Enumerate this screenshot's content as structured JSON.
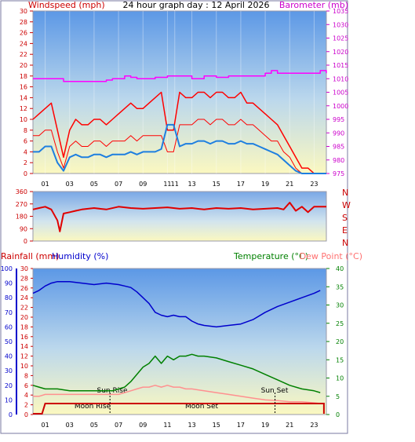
{
  "header": {
    "title": "24 hour graph day : 12 April 2026",
    "left_label": "Windspeed (mph)",
    "right_label": "Barometer (mb)"
  },
  "lower_header": {
    "rainfall_label": "Rainfall (mm)",
    "humidity_label": "Humidity (%)",
    "temperature_label": "Temperature (°C)",
    "dewpoint_label": "Dew Point (°C)"
  },
  "annotations": {
    "sun_rise": "Sun Rise",
    "sun_set": "Sun Set",
    "moon_rise": "Moon Rise",
    "moon_set": "Moon Set"
  },
  "colors": {
    "wind_gust": "#ff0000",
    "wind_avg": "#1e7fe0",
    "barometer": "#ff00ff",
    "wind_dir": "#e00000",
    "humidity": "#0000cc",
    "temperature": "#008000",
    "dewpoint": "#ff9090",
    "rainfall": "#cc0000",
    "wind_axis": "#cc0000",
    "baro_axis": "#cc00cc",
    "humidity_axis": "#0000cc",
    "temp_axis": "#008000"
  },
  "chart_data": [
    {
      "type": "line",
      "title": "24 hour graph day : 12 April 2026",
      "xlabel": "",
      "ylabel": "Windspeed (mph)",
      "y2label": "Barometer (mb)",
      "x_tick_labels": [
        "01",
        "03",
        "05",
        "07",
        "09",
        "11",
        "11",
        "13",
        "15",
        "17",
        "19",
        "21",
        "23"
      ],
      "x_tick_hours": [
        1,
        3,
        5,
        7,
        9,
        11,
        11.6,
        13,
        15,
        17,
        19,
        21,
        23
      ],
      "xlim": [
        0,
        24
      ],
      "ylim": [
        0,
        30
      ],
      "y_ticks": [
        0,
        2,
        4,
        6,
        8,
        10,
        12,
        14,
        16,
        18,
        20,
        22,
        24,
        26,
        28,
        30
      ],
      "y2lim": [
        975,
        1035
      ],
      "y2_ticks": [
        975,
        980,
        985,
        990,
        995,
        1000,
        1005,
        1010,
        1015,
        1020,
        1025,
        1030,
        1035
      ],
      "series": [
        {
          "name": "Windspeed (mph)",
          "x": [
            0,
            0.5,
            1,
            1.5,
            2,
            2.5,
            3,
            3.5,
            4,
            4.5,
            5,
            5.5,
            6,
            6.5,
            7,
            7.5,
            8,
            8.5,
            9,
            9.5,
            10,
            10.5,
            11,
            11.5,
            12,
            12.5,
            13,
            13.5,
            14,
            14.5,
            15,
            15.5,
            16,
            16.5,
            17,
            17.5,
            18,
            18.5,
            19,
            19.5,
            20,
            20.5,
            21,
            21.5,
            22,
            22.5,
            23,
            23.5,
            24
          ],
          "values": [
            7,
            7,
            8,
            8,
            4,
            1,
            5,
            6,
            5,
            5,
            6,
            6,
            5,
            6,
            6,
            6,
            7,
            6,
            7,
            7,
            7,
            7,
            4,
            4,
            9,
            9,
            9,
            10,
            10,
            9,
            10,
            10,
            9,
            9,
            10,
            9,
            9,
            8,
            7,
            6,
            6,
            4,
            3,
            1,
            0,
            0,
            0,
            0,
            0
          ]
        },
        {
          "name": "Wind gust",
          "x": [
            0,
            0.5,
            1,
            1.5,
            2,
            2.5,
            3,
            3.5,
            4,
            4.5,
            5,
            5.5,
            6,
            6.5,
            7,
            7.5,
            8,
            8.5,
            9,
            9.5,
            10,
            10.5,
            11,
            11.5,
            12,
            12.5,
            13,
            13.5,
            14,
            14.5,
            15,
            15.5,
            16,
            16.5,
            17,
            17.5,
            18,
            18.5,
            19,
            19.5,
            20,
            20.5,
            21,
            21.5,
            22,
            22.5,
            23,
            23.5,
            24
          ],
          "values": [
            10,
            11,
            12,
            13,
            8,
            3,
            8,
            10,
            9,
            9,
            10,
            10,
            9,
            10,
            11,
            12,
            13,
            12,
            12,
            13,
            14,
            15,
            8,
            8,
            15,
            14,
            14,
            15,
            15,
            14,
            15,
            15,
            14,
            14,
            15,
            13,
            13,
            12,
            11,
            10,
            9,
            7,
            5,
            3,
            1,
            1,
            0,
            0,
            0
          ]
        },
        {
          "name": "Wind average",
          "x": [
            0,
            0.5,
            1,
            1.5,
            2,
            2.5,
            3,
            3.5,
            4,
            4.5,
            5,
            5.5,
            6,
            6.5,
            7,
            7.5,
            8,
            8.5,
            9,
            9.5,
            10,
            10.5,
            11,
            11.5,
            12,
            12.5,
            13,
            13.5,
            14,
            14.5,
            15,
            15.5,
            16,
            16.5,
            17,
            17.5,
            18,
            18.5,
            19,
            19.5,
            20,
            20.5,
            21,
            21.5,
            22,
            22.5,
            23,
            23.5,
            24
          ],
          "values": [
            4,
            4,
            5,
            5,
            2,
            0.5,
            3,
            3.5,
            3,
            3,
            3.5,
            3.5,
            3,
            3.5,
            3.5,
            3.5,
            4,
            3.5,
            4,
            4,
            4,
            4.5,
            9,
            9,
            5,
            5.5,
            5.5,
            6,
            6,
            5.5,
            6,
            6,
            5.5,
            5.5,
            6,
            5.5,
            5.5,
            5,
            4.5,
            4,
            3.5,
            2.5,
            1.5,
            0.5,
            0,
            0,
            0,
            0,
            0
          ]
        },
        {
          "name": "Barometer (mb)",
          "x": [
            0,
            1,
            2,
            2.5,
            3,
            4,
            5,
            6,
            6.5,
            7,
            7.5,
            8,
            8.5,
            9,
            10,
            11,
            12,
            13,
            14,
            15,
            16,
            17,
            18,
            19,
            19.5,
            20,
            21,
            22,
            23,
            23.5,
            24
          ],
          "values": [
            1010,
            1010,
            1010,
            1009,
            1009,
            1009,
            1009,
            1009.5,
            1010,
            1010,
            1011,
            1010.5,
            1010,
            1010,
            1010.5,
            1011,
            1011,
            1010,
            1011,
            1010.5,
            1011,
            1011,
            1011,
            1012,
            1013,
            1012,
            1012,
            1012,
            1012,
            1013,
            1012
          ]
        }
      ]
    },
    {
      "type": "line",
      "title": "",
      "ylabel": "",
      "ylim": [
        0,
        360
      ],
      "y_ticks": [
        0,
        90,
        180,
        270,
        360
      ],
      "compass_labels": [
        "N",
        "W",
        "S",
        "E",
        "N"
      ],
      "xlim": [
        0,
        24
      ],
      "series": [
        {
          "name": "Wind direction",
          "x": [
            0,
            0.5,
            1,
            1.5,
            2,
            2.2,
            2.5,
            3,
            3.5,
            4,
            5,
            6,
            7,
            8,
            9,
            10,
            11,
            12,
            13,
            14,
            15,
            16,
            17,
            18,
            19,
            20,
            20.5,
            21,
            21.5,
            22,
            22.5,
            23,
            24
          ],
          "values": [
            230,
            240,
            250,
            230,
            150,
            70,
            200,
            210,
            220,
            230,
            240,
            230,
            250,
            240,
            235,
            240,
            245,
            235,
            240,
            230,
            240,
            235,
            240,
            230,
            235,
            240,
            230,
            280,
            220,
            250,
            210,
            250,
            250
          ]
        }
      ]
    },
    {
      "type": "line",
      "title": "",
      "xlabel": "",
      "ylabel": "Rainfall (mm)",
      "y1label": "Humidity (%)",
      "y2label": "Temperature (°C)",
      "y3label": "Dew Point (°C)",
      "x_tick_labels": [
        "01",
        "03",
        "05",
        "07",
        "09",
        "11",
        "13",
        "15",
        "17",
        "19",
        "21",
        "23"
      ],
      "x_tick_hours": [
        1,
        3,
        5,
        7,
        9,
        11,
        13,
        15,
        17,
        19,
        21,
        23
      ],
      "xlim": [
        0,
        24
      ],
      "rain_ylim": [
        0,
        30
      ],
      "rain_ticks": [
        0,
        2,
        4,
        6,
        8,
        10,
        12,
        14,
        16,
        18,
        20,
        22,
        24,
        26,
        28,
        30
      ],
      "humidity_ylim": [
        0,
        100
      ],
      "humidity_ticks": [
        0,
        10,
        20,
        30,
        40,
        50,
        60,
        70,
        80,
        90,
        100
      ],
      "temp_ylim": [
        0,
        40
      ],
      "temp_ticks": [
        0,
        5,
        10,
        15,
        20,
        25,
        30,
        35,
        40
      ],
      "sun_rise_hour": 6.3,
      "sun_set_hour": 19.8,
      "series": [
        {
          "name": "Humidity (%)",
          "x": [
            0,
            0.5,
            1,
            1.5,
            2,
            3,
            4,
            5,
            6,
            7,
            7.5,
            8,
            8.5,
            9,
            9.5,
            10,
            10.5,
            11,
            11.5,
            12,
            12.5,
            13,
            13.5,
            14,
            15,
            16,
            17,
            18,
            19,
            20,
            21,
            22,
            23,
            23.5
          ],
          "values": [
            83,
            85,
            88,
            90,
            91,
            91,
            90,
            89,
            90,
            89,
            88,
            87,
            84,
            80,
            76,
            70,
            68,
            67,
            68,
            67,
            67,
            64,
            62,
            61,
            60,
            61,
            62,
            65,
            70,
            74,
            77,
            80,
            83,
            85
          ]
        },
        {
          "name": "Temperature (°C)",
          "x": [
            0,
            0.5,
            1,
            1.5,
            2,
            3,
            4,
            5,
            6,
            6.5,
            7,
            7.5,
            8,
            8.5,
            9,
            9.5,
            10,
            10.5,
            11,
            11.5,
            12,
            12.5,
            13,
            13.5,
            14,
            15,
            16,
            17,
            18,
            19,
            20,
            21,
            22,
            23,
            23.5
          ],
          "values": [
            8,
            7.5,
            7,
            7,
            7,
            6.5,
            6.5,
            6.5,
            6.5,
            6.5,
            7,
            7.5,
            9,
            11,
            13,
            14,
            16,
            14,
            16,
            15,
            16,
            16,
            16.5,
            16,
            16,
            15.5,
            14.5,
            13.5,
            12.5,
            11,
            9.5,
            8,
            7,
            6.5,
            6
          ]
        },
        {
          "name": "Dew Point (°C)",
          "x": [
            0,
            0.5,
            1,
            1.5,
            2,
            3,
            4,
            5,
            6,
            6.5,
            7,
            7.5,
            8,
            8.5,
            9,
            9.5,
            10,
            10.5,
            11,
            11.5,
            12,
            12.5,
            13,
            14,
            15,
            16,
            17,
            18,
            19,
            20,
            21,
            22,
            23,
            23.5
          ],
          "values": [
            5,
            5,
            5.5,
            5.5,
            5.5,
            5.5,
            5.5,
            5.5,
            5.5,
            5.5,
            5.5,
            6,
            6.5,
            7,
            7.5,
            7.5,
            8,
            7.5,
            8,
            7.5,
            7.5,
            7,
            7,
            6.5,
            6,
            5.5,
            5,
            4.5,
            4,
            3.8,
            3.5,
            3.5,
            3.2,
            3
          ]
        },
        {
          "name": "Rainfall (mm)",
          "x": [
            0,
            0.5,
            1,
            23.8,
            24
          ],
          "values": [
            0,
            0,
            0,
            0,
            0
          ]
        }
      ]
    }
  ]
}
